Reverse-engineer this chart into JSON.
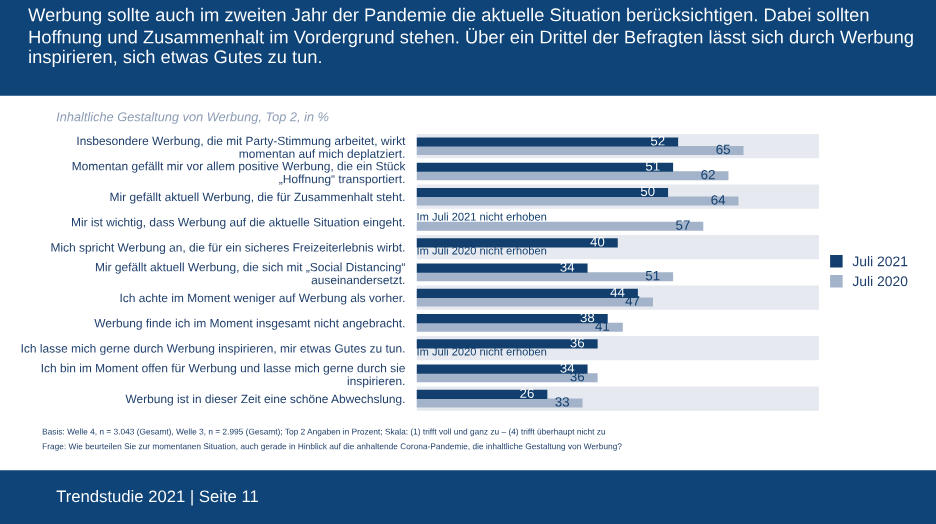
{
  "chart_data": {
    "type": "bar",
    "orientation": "horizontal",
    "title": "Werbung sollte auch im zweiten Jahr der Pandemie die aktuelle Situation berücksichtigen. Dabei sollten Hoffnung und Zusammenhalt im Vordergrund stehen. Über ein Drittel der Befragten lässt sich durch Werbung inspirieren, sich etwas Gutes zu tun.",
    "subtitle": "Inhaltliche Gestaltung von Werbung, Top 2, in %",
    "categories": [
      "Insbesondere Werbung, die mit Party-Stimmung arbeitet, wirkt\nmomentan auf mich deplatziert.",
      "Momentan gefällt mir vor allem positive Werbung, die ein Stück\n„Hoffnung“ transportiert.",
      "Mir gefällt aktuell Werbung, die für Zusammenhalt steht.",
      "Mir ist wichtig, dass Werbung auf die aktuelle Situation eingeht.",
      "Mich spricht Werbung an, die für ein sicheres Freizeiterlebnis wirbt.",
      "Mir gefällt aktuell Werbung, die sich mit „Social Distancing“\nauseinandersetzt.",
      "Ich achte im Moment weniger auf Werbung als vorher.",
      "Werbung finde ich im Moment insgesamt nicht angebracht.",
      "Ich lasse mich gerne durch Werbung inspirieren, mir etwas Gutes zu tun.",
      "Ich bin im Moment offen für Werbung und lasse mich gerne durch sie\ninspirieren.",
      "Werbung ist in dieser Zeit eine schöne Abwechslung."
    ],
    "series": [
      {
        "name": "Juli 2021",
        "color": "#123f6e",
        "values": [
          52,
          51,
          50,
          null,
          40,
          34,
          44,
          38,
          36,
          34,
          26
        ]
      },
      {
        "name": "Juli 2020",
        "color": "#a3b3c9",
        "values": [
          65,
          62,
          64,
          57,
          null,
          51,
          47,
          41,
          null,
          36,
          33
        ]
      }
    ],
    "xlim": [
      0,
      80
    ],
    "tick_labels": "y",
    "data_labels": true,
    "legend": "right",
    "annotations": [
      {
        "text": "Im Juli 2021 nicht erhoben",
        "y": "Mir ist wichtig, dass Werbung auf die aktuelle Situation eingeht."
      },
      {
        "text": "Im Juli 2020 nicht erhoben",
        "y": "Mich spricht Werbung an, die für ein sicheres Freizeiterlebnis wirbt."
      },
      {
        "text": "Im Juli 2020 nicht erhoben",
        "y": "Ich lasse mich gerne durch Werbung inspirieren, mir etwas Gutes zu tun."
      },
      "Basis: Welle 4, n = 3.043 (Gesamt), Welle 3, n = 2.995 (Gesamt); Top 2 Angaben in Prozent; Skala: (1) trifft voll und ganz zu – (4) trifft überhaupt nicht zu",
      "Frage: Wie beurteilen Sie zur momentanen Situation, auch gerade in Hinblick auf die anhaltende Corona-Pandemie, die inhaltliche Gestaltung von Werbung?",
      "Trendstudie 2021 | Seite 11"
    ]
  }
}
